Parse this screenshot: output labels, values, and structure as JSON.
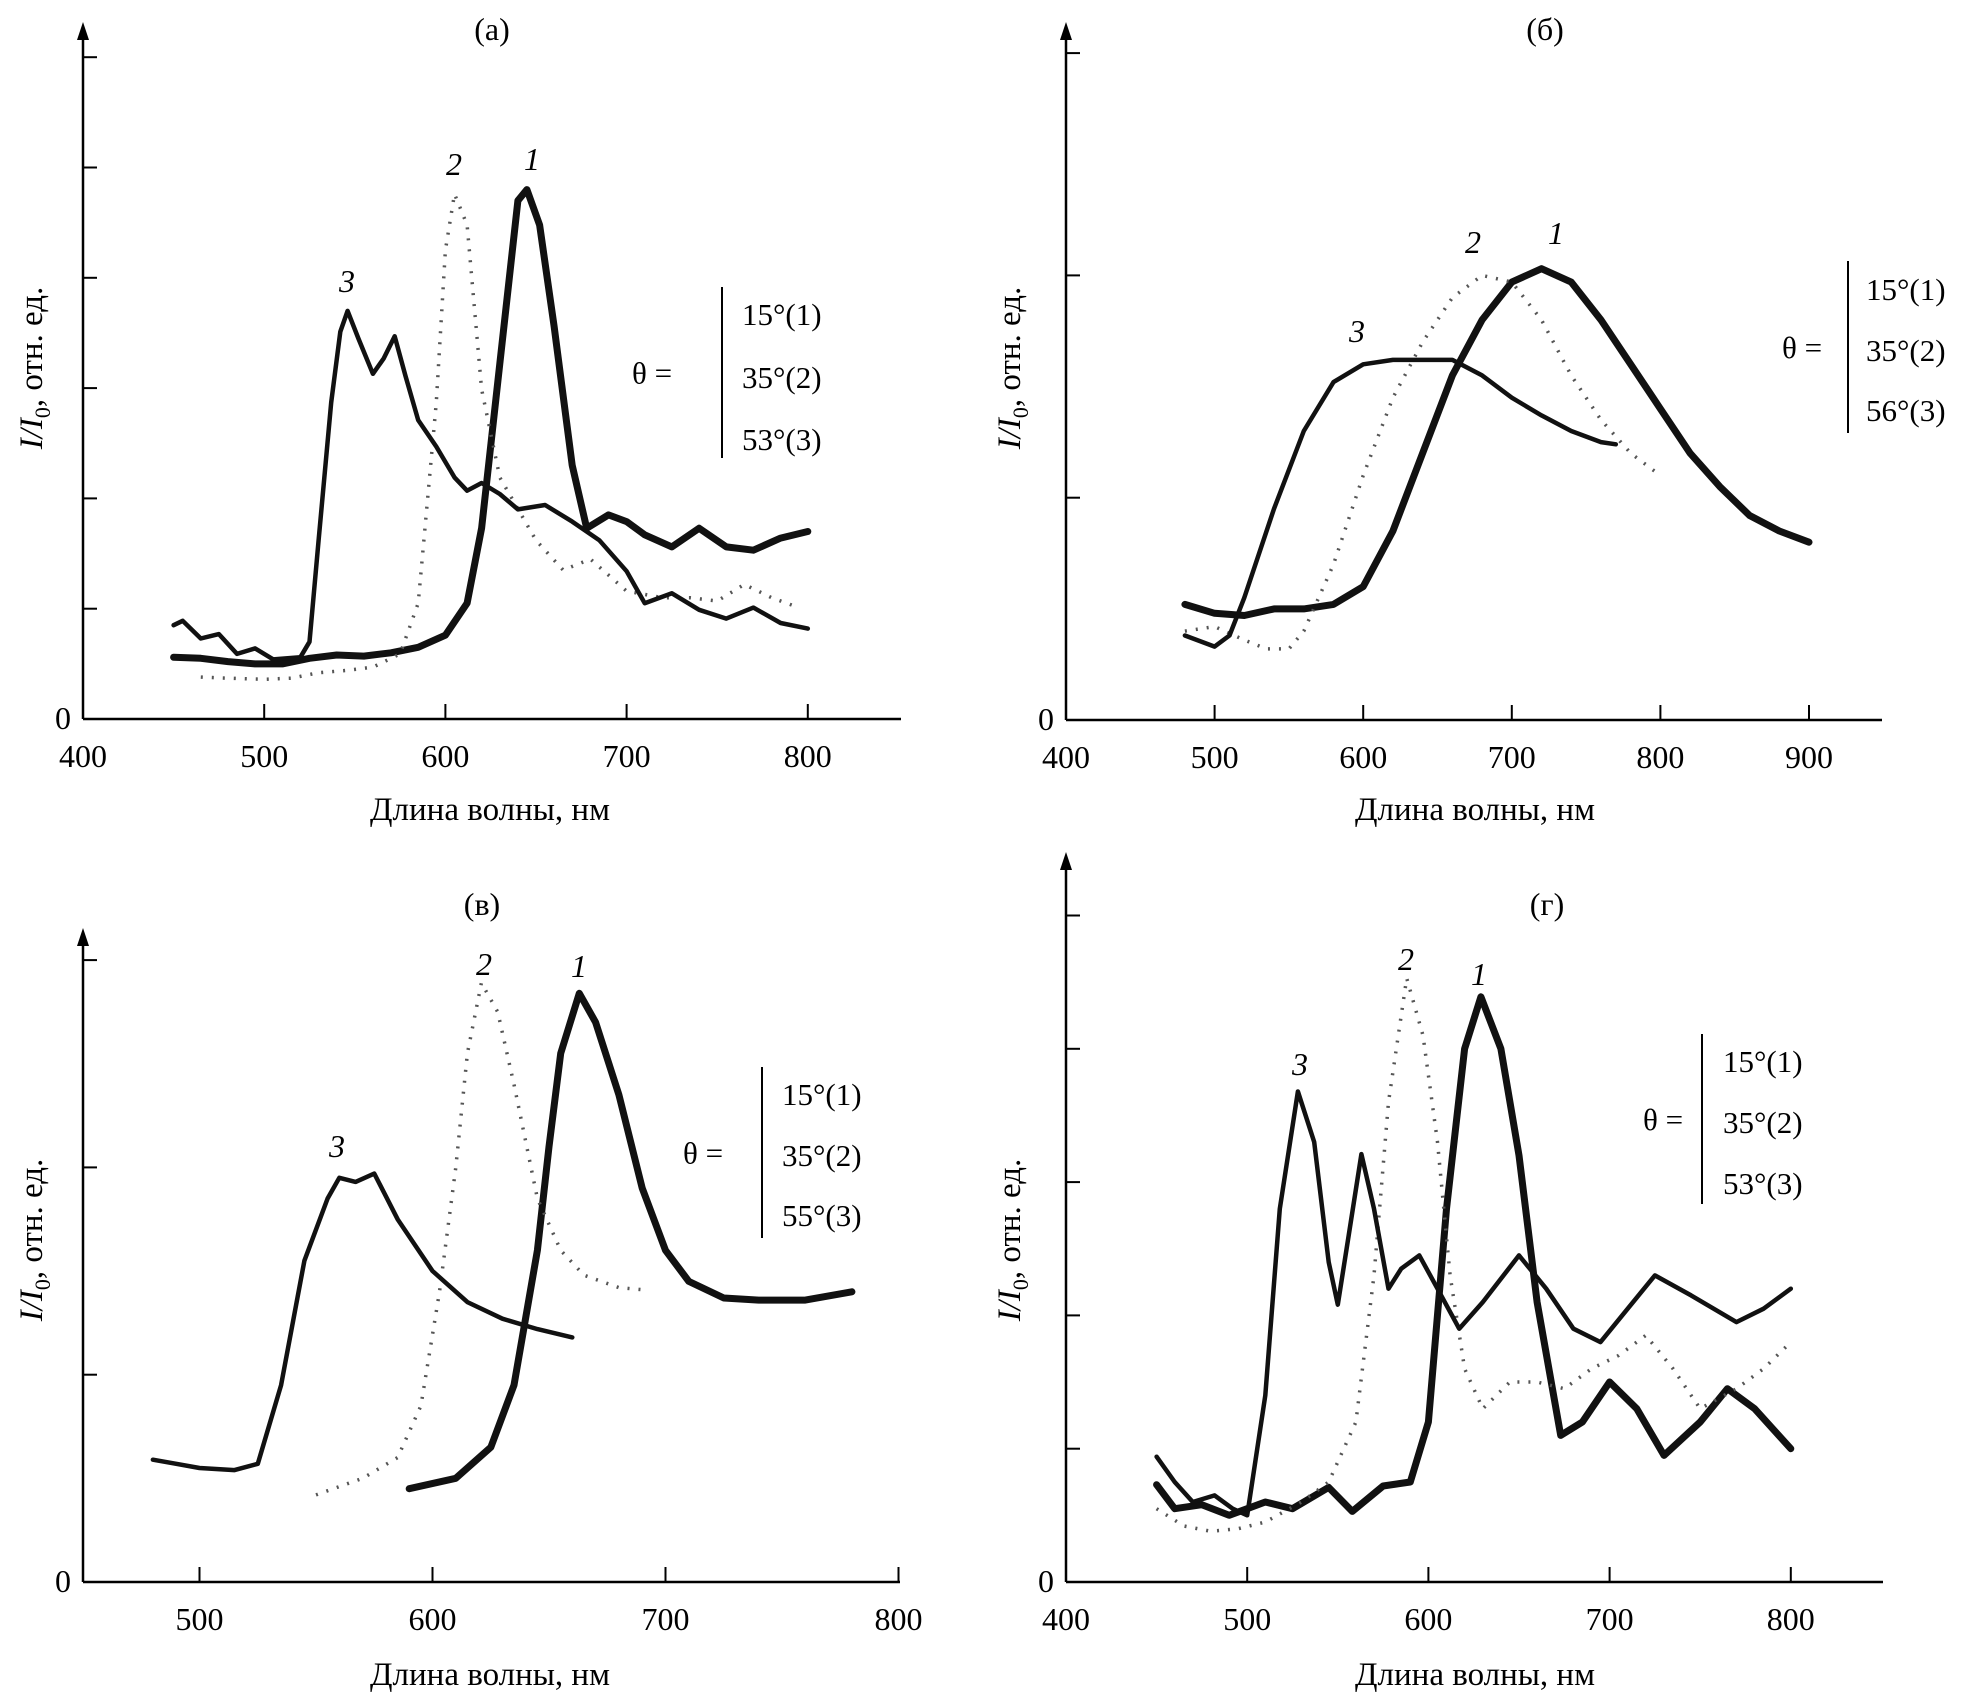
{
  "figure": {
    "x_axis_label": "Длина волны, нм",
    "y_axis_label_main": "I/I",
    "y_axis_label_sub": "0",
    "y_axis_label_rest": ", отн. ед.",
    "legend_prefix": "θ ="
  },
  "chart_data": [
    {
      "id": "a",
      "type": "line",
      "title": "(a)",
      "xlabel": "Длина волны, нм",
      "ylabel": "I/I0, отн. ед.",
      "xlim": [
        400,
        860
      ],
      "ylim": [
        0,
        6.4
      ],
      "x_ticks": [
        400,
        500,
        600,
        700,
        800
      ],
      "y_ticks": [
        0,
        1,
        2,
        3,
        4,
        5,
        6
      ],
      "y_tick_labels": [
        "0"
      ],
      "legend": [
        "15°(1)",
        "35°(2)",
        "53°(3)"
      ],
      "legend_placement": "right",
      "series": [
        {
          "name": "1",
          "label": "1",
          "style": "thick",
          "x": [
            450,
            465,
            480,
            495,
            510,
            525,
            540,
            555,
            570,
            585,
            600,
            612,
            620,
            630,
            640,
            645,
            652,
            660,
            670,
            678,
            690,
            700,
            710,
            725,
            740,
            755,
            770,
            785,
            800
          ],
          "y": [
            0.56,
            0.55,
            0.52,
            0.5,
            0.5,
            0.55,
            0.58,
            0.57,
            0.6,
            0.65,
            0.76,
            1.05,
            1.73,
            3.22,
            4.7,
            4.8,
            4.48,
            3.56,
            2.3,
            1.73,
            1.85,
            1.79,
            1.67,
            1.56,
            1.73,
            1.56,
            1.53,
            1.64,
            1.7
          ]
        },
        {
          "name": "2",
          "label": "2",
          "style": "dotted",
          "x": [
            465,
            480,
            500,
            515,
            530,
            545,
            560,
            575,
            585,
            595,
            600,
            605,
            612,
            620,
            630,
            650,
            665,
            680,
            700,
            720,
            735,
            750,
            765,
            780,
            795
          ],
          "y": [
            0.38,
            0.37,
            0.36,
            0.37,
            0.42,
            0.44,
            0.47,
            0.59,
            1.05,
            2.87,
            4.25,
            4.76,
            4.48,
            2.99,
            2.19,
            1.62,
            1.35,
            1.45,
            1.16,
            1.1,
            1.1,
            1.07,
            1.22,
            1.1,
            1.01
          ]
        },
        {
          "name": "3",
          "label": "3",
          "style": "thin",
          "x": [
            450,
            455,
            465,
            475,
            485,
            495,
            505,
            520,
            525,
            530,
            537,
            542,
            546,
            552,
            560,
            566,
            572,
            578,
            585,
            595,
            605,
            612,
            620,
            630,
            640,
            655,
            670,
            685,
            700,
            710,
            725,
            740,
            755,
            770,
            785,
            800
          ],
          "y": [
            0.85,
            0.89,
            0.73,
            0.77,
            0.59,
            0.64,
            0.54,
            0.56,
            0.7,
            1.62,
            2.87,
            3.51,
            3.7,
            3.45,
            3.13,
            3.27,
            3.47,
            3.11,
            2.71,
            2.47,
            2.19,
            2.07,
            2.14,
            2.04,
            1.9,
            1.94,
            1.79,
            1.62,
            1.34,
            1.05,
            1.14,
            0.99,
            0.91,
            1.01,
            0.87,
            0.82
          ]
        }
      ]
    },
    {
      "id": "b",
      "type": "line",
      "title": "(б)",
      "xlabel": "Длина волны, нм",
      "ylabel": "I/I0, отн. ед.",
      "xlim": [
        400,
        950
      ],
      "ylim": [
        0,
        3.2
      ],
      "x_ticks": [
        400,
        500,
        600,
        700,
        800,
        900
      ],
      "y_ticks": [
        0,
        1,
        2,
        3
      ],
      "y_tick_labels": [
        "0"
      ],
      "legend": [
        "15°(1)",
        "35°(2)",
        "56°(3)"
      ],
      "legend_placement": "right",
      "series": [
        {
          "name": "1",
          "label": "1",
          "style": "thick",
          "x": [
            480,
            500,
            520,
            540,
            560,
            580,
            600,
            620,
            640,
            660,
            680,
            700,
            720,
            740,
            760,
            780,
            800,
            820,
            840,
            860,
            880,
            900
          ],
          "y": [
            0.52,
            0.48,
            0.47,
            0.5,
            0.5,
            0.52,
            0.6,
            0.85,
            1.2,
            1.55,
            1.8,
            1.97,
            2.03,
            1.97,
            1.8,
            1.6,
            1.4,
            1.2,
            1.05,
            0.92,
            0.85,
            0.8
          ]
        },
        {
          "name": "2",
          "label": "2",
          "style": "dotted",
          "x": [
            480,
            500,
            520,
            535,
            550,
            560,
            580,
            600,
            620,
            640,
            660,
            680,
            700,
            720,
            740,
            760,
            780,
            800
          ],
          "y": [
            0.4,
            0.42,
            0.36,
            0.32,
            0.32,
            0.4,
            0.7,
            1.1,
            1.45,
            1.7,
            1.9,
            2.0,
            1.97,
            1.8,
            1.55,
            1.35,
            1.2,
            1.1
          ]
        },
        {
          "name": "3",
          "label": "3",
          "style": "thin",
          "x": [
            480,
            500,
            510,
            520,
            540,
            560,
            580,
            600,
            620,
            640,
            660,
            680,
            700,
            720,
            740,
            760,
            770
          ],
          "y": [
            0.38,
            0.33,
            0.38,
            0.55,
            0.95,
            1.3,
            1.52,
            1.6,
            1.62,
            1.62,
            1.62,
            1.55,
            1.45,
            1.37,
            1.3,
            1.25,
            1.24
          ]
        }
      ]
    },
    {
      "id": "v",
      "type": "line",
      "title": "(в)",
      "xlabel": "Длина волны, нм",
      "ylabel": "I/I0, отн. ед.",
      "xlim": [
        450,
        800
      ],
      "ylim": [
        0,
        3.2
      ],
      "x_ticks": [
        500,
        600,
        700,
        800
      ],
      "y_ticks": [
        0,
        1,
        2,
        3
      ],
      "y_tick_labels": [
        "0"
      ],
      "legend": [
        "15°(1)",
        "35°(2)",
        "55°(3)"
      ],
      "legend_placement": "right",
      "series": [
        {
          "name": "1",
          "label": "1",
          "style": "thick",
          "x": [
            590,
            610,
            625,
            635,
            645,
            650,
            655,
            663,
            670,
            680,
            690,
            700,
            710,
            725,
            740,
            760,
            780
          ],
          "y": [
            0.45,
            0.5,
            0.65,
            0.95,
            1.6,
            2.1,
            2.55,
            2.84,
            2.7,
            2.35,
            1.9,
            1.6,
            1.45,
            1.37,
            1.36,
            1.36,
            1.4
          ]
        },
        {
          "name": "2",
          "label": "2",
          "style": "dotted",
          "x": [
            550,
            570,
            585,
            595,
            603,
            610,
            615,
            621,
            628,
            635,
            645,
            655,
            665,
            680,
            690
          ],
          "y": [
            0.42,
            0.5,
            0.6,
            0.85,
            1.4,
            2.0,
            2.55,
            2.89,
            2.75,
            2.4,
            1.85,
            1.6,
            1.48,
            1.42,
            1.41
          ]
        },
        {
          "name": "3",
          "label": "3",
          "style": "thin",
          "x": [
            480,
            490,
            500,
            515,
            525,
            535,
            545,
            555,
            560,
            567,
            575,
            585,
            600,
            615,
            630,
            645,
            660
          ],
          "y": [
            0.59,
            0.57,
            0.55,
            0.54,
            0.57,
            0.95,
            1.55,
            1.85,
            1.95,
            1.93,
            1.97,
            1.75,
            1.5,
            1.35,
            1.27,
            1.22,
            1.18
          ]
        }
      ]
    },
    {
      "id": "g",
      "type": "line",
      "title": "(г)",
      "xlabel": "Длина волны, нм",
      "ylabel": "I/I0, отн. ед.",
      "xlim": [
        400,
        860
      ],
      "ylim": [
        0,
        5.4
      ],
      "x_ticks": [
        400,
        500,
        600,
        700,
        800
      ],
      "y_ticks": [
        0,
        1,
        2,
        3,
        4,
        5
      ],
      "y_tick_labels": [
        "0"
      ],
      "legend": [
        "15°(1)",
        "35°(2)",
        "53°(3)"
      ],
      "legend_placement": "right",
      "series": [
        {
          "name": "1",
          "label": "1",
          "style": "thick",
          "x": [
            450,
            460,
            475,
            490,
            500,
            510,
            525,
            545,
            558,
            575,
            590,
            600,
            610,
            620,
            629,
            640,
            650,
            660,
            673,
            685,
            700,
            715,
            730,
            750,
            765,
            780,
            800
          ],
          "y": [
            0.73,
            0.55,
            0.58,
            0.5,
            0.55,
            0.6,
            0.55,
            0.71,
            0.53,
            0.72,
            0.75,
            1.2,
            2.8,
            4.0,
            4.39,
            4.0,
            3.2,
            2.1,
            1.1,
            1.2,
            1.5,
            1.3,
            0.95,
            1.2,
            1.45,
            1.3,
            1.0
          ]
        },
        {
          "name": "2",
          "label": "2",
          "style": "dotted",
          "x": [
            450,
            465,
            480,
            495,
            510,
            530,
            545,
            560,
            570,
            578,
            588,
            597,
            605,
            612,
            620,
            630,
            645,
            660,
            675,
            690,
            705,
            720,
            735,
            750,
            770,
            785,
            800
          ],
          "y": [
            0.55,
            0.42,
            0.38,
            0.4,
            0.45,
            0.6,
            0.75,
            1.2,
            2.3,
            3.6,
            4.53,
            4.1,
            3.3,
            2.3,
            1.6,
            1.3,
            1.5,
            1.5,
            1.45,
            1.6,
            1.7,
            1.85,
            1.6,
            1.3,
            1.45,
            1.6,
            1.8
          ]
        },
        {
          "name": "3",
          "label": "3",
          "style": "thin",
          "x": [
            450,
            460,
            470,
            482,
            492,
            500,
            510,
            518,
            528,
            537,
            545,
            550,
            556,
            563,
            570,
            578,
            585,
            595,
            605,
            617,
            630,
            650,
            665,
            680,
            695,
            710,
            725,
            745,
            770,
            785,
            800
          ],
          "y": [
            0.94,
            0.75,
            0.6,
            0.65,
            0.55,
            0.5,
            1.4,
            2.8,
            3.68,
            3.3,
            2.4,
            2.08,
            2.6,
            3.21,
            2.8,
            2.2,
            2.35,
            2.45,
            2.2,
            1.9,
            2.1,
            2.45,
            2.2,
            1.9,
            1.8,
            2.05,
            2.3,
            2.15,
            1.95,
            2.05,
            2.2
          ]
        }
      ]
    }
  ]
}
